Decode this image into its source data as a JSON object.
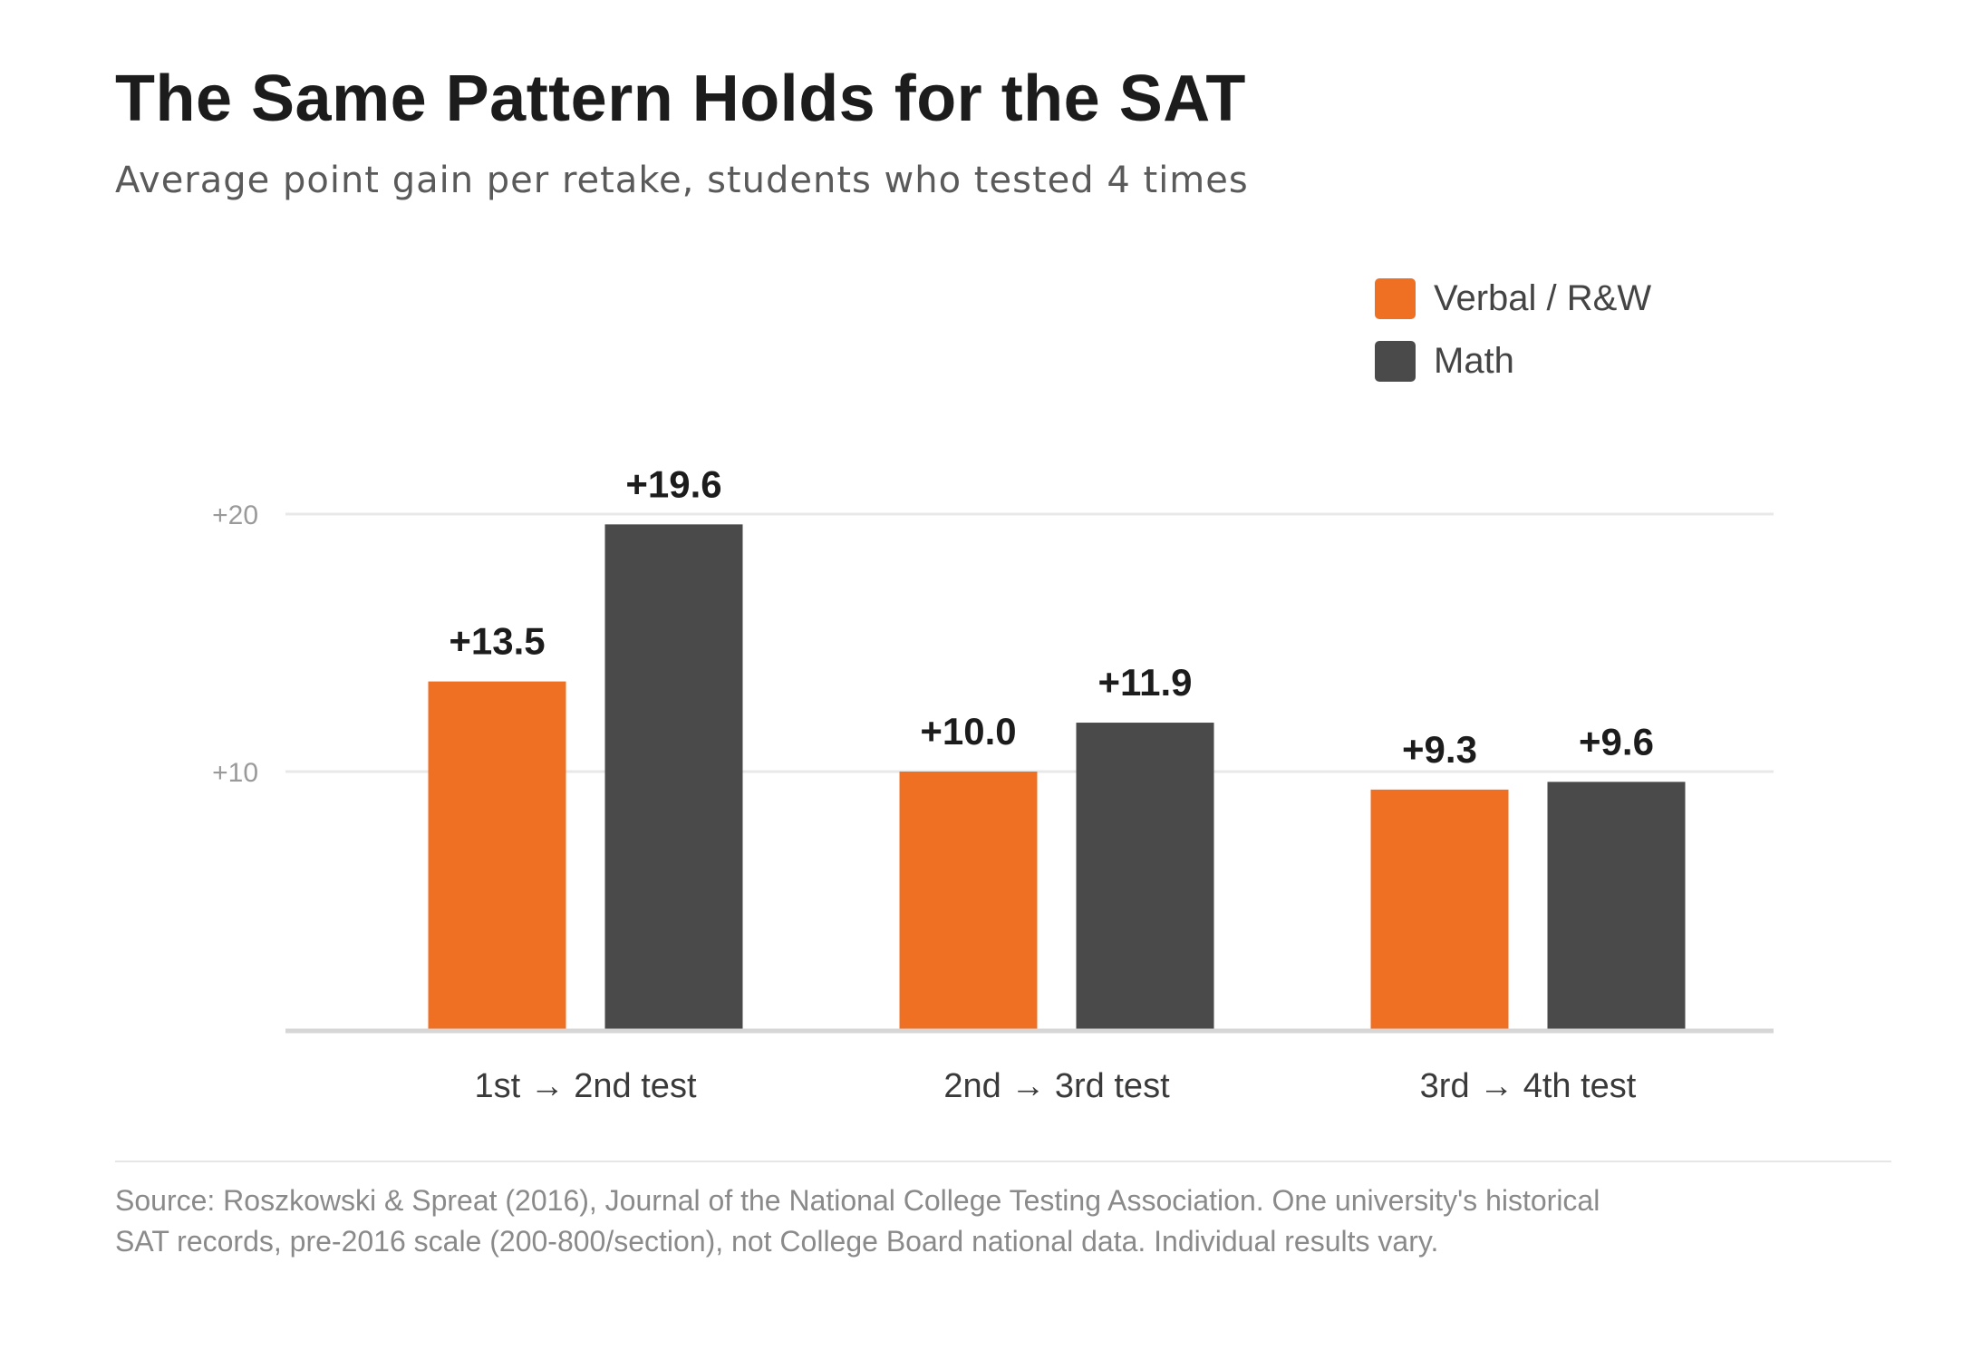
{
  "header": {
    "title": "The Same Pattern Holds for the SAT",
    "subtitle": "Average point gain per retake, students who tested 4 times"
  },
  "legend": [
    {
      "label": "Verbal / R&W",
      "color": "#f07023"
    },
    {
      "label": "Math",
      "color": "#4a4a4a"
    }
  ],
  "chart_data": {
    "type": "bar",
    "categories": [
      "1st → 2nd test",
      "2nd → 3rd test",
      "3rd → 4th test"
    ],
    "series": [
      {
        "name": "Verbal / R&W",
        "color": "#f07023",
        "values": [
          13.5,
          10.0,
          9.3
        ],
        "labels": [
          "+13.5",
          "+10.0",
          "+9.3"
        ]
      },
      {
        "name": "Math",
        "color": "#4a4a4a",
        "values": [
          19.6,
          11.9,
          9.6
        ],
        "labels": [
          "+19.6",
          "+11.9",
          "+9.6"
        ]
      }
    ],
    "ylim": [
      0,
      20
    ],
    "yticks": [
      {
        "value": 10,
        "label": "+10"
      },
      {
        "value": 20,
        "label": "+20"
      }
    ],
    "grid": true,
    "legend_position": "top-right"
  },
  "footer": {
    "source_line1": "Source: Roszkowski & Spreat (2016), Journal of the National College Testing Association. One university's historical",
    "source_line2": "SAT records, pre-2016 scale (200-800/section), not College Board national data. Individual results vary."
  }
}
